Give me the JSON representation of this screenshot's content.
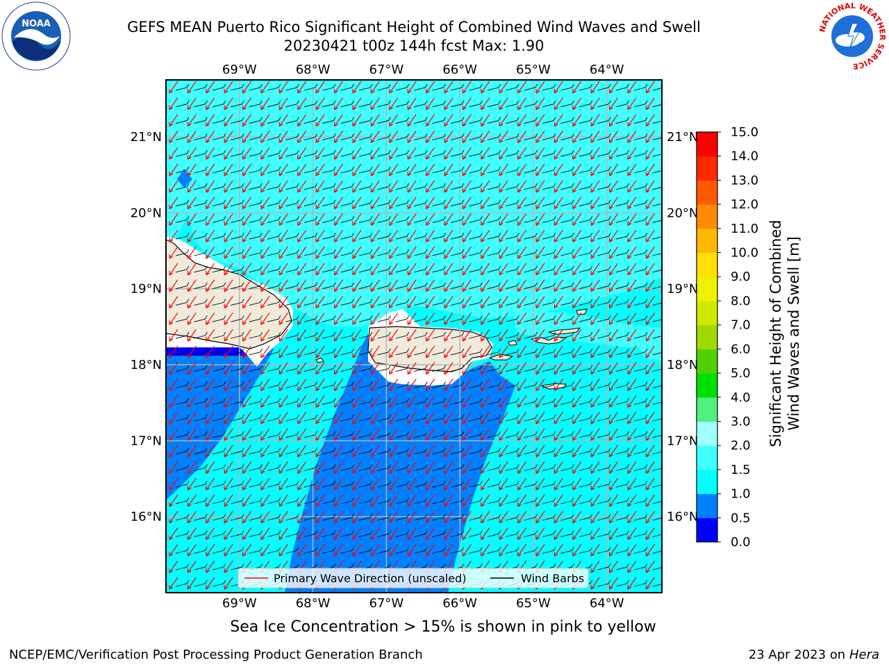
{
  "title": {
    "line1": "GEFS MEAN Puerto Rico Significant Height of Combined Wind Waves and Swell",
    "line2": "20230421 t00z 144h fcst   Max: 1.90"
  },
  "logos": {
    "left_icon": "noaa-logo-icon",
    "left_text": "NOAA",
    "left_ring_text": "NATIONAL OCEANIC AND ATMOSPHERIC ADMINISTRATION · U.S. DEPARTMENT OF COMMERCE",
    "right_icon": "nws-logo-icon",
    "right_ring_text": "NATIONAL WEATHER SERVICE"
  },
  "axes": {
    "lon_ticks": [
      "69°W",
      "68°W",
      "67°W",
      "66°W",
      "65°W",
      "64°W"
    ],
    "lon_values": [
      -69,
      -68,
      -67,
      -66,
      -65,
      -64
    ],
    "lat_ticks": [
      "21°N",
      "20°N",
      "19°N",
      "18°N",
      "17°N",
      "16°N"
    ],
    "lat_values": [
      21,
      20,
      19,
      18,
      17,
      16
    ],
    "lon_range": [
      -70.0,
      -63.25
    ],
    "lat_range": [
      15.0,
      21.75
    ]
  },
  "legend": {
    "primary_wave": "Primary Wave Direction (unscaled)",
    "wind_barbs": "Wind Barbs",
    "primary_wave_color": "#ff0000",
    "wind_barbs_color": "#000000"
  },
  "colorbar": {
    "label": "Significant Height of Combined Wind Waves and Swell [m]",
    "label_line1": "Significant Height of Combined",
    "label_line2": "Wind Waves and Swell [m]",
    "tick_labels": [
      "0.0",
      "0.5",
      "1.0",
      "1.5",
      "2.0",
      "3.0",
      "4.0",
      "5.0",
      "6.0",
      "7.0",
      "8.0",
      "9.0",
      "10.0",
      "11.0",
      "12.0",
      "13.0",
      "14.0",
      "15.0"
    ],
    "bins": [
      0.0,
      0.5,
      1.0,
      1.5,
      2.0,
      3.0,
      4.0,
      5.0,
      6.0,
      7.0,
      8.0,
      9.0,
      10.0,
      11.0,
      12.0,
      13.0,
      14.0,
      15.0
    ],
    "colors": [
      "#0000ff",
      "#0080ff",
      "#00ffff",
      "#40ffff",
      "#a0ffff",
      "#50f080",
      "#00e000",
      "#50d000",
      "#a0d800",
      "#d0e800",
      "#f0f000",
      "#ffe000",
      "#ffb800",
      "#ff8c00",
      "#ff5a00",
      "#ff2800",
      "#ff0000"
    ]
  },
  "map_colors": {
    "ocean_main": "#00ffff",
    "ocean_light": "#40ffff",
    "ocean_dark": "#0080ff",
    "ocean_deepest": "#0000ff",
    "land": "#efebda",
    "gridline": "#b4b4b4"
  },
  "sea_ice_note": "Sea Ice Concentration > 15% is shown in pink to yellow",
  "footer": {
    "left": "NCEP/EMC/Verification Post Processing Product Generation Branch",
    "right_prefix": "23 Apr 2023 on",
    "right_machine": "Hera"
  }
}
